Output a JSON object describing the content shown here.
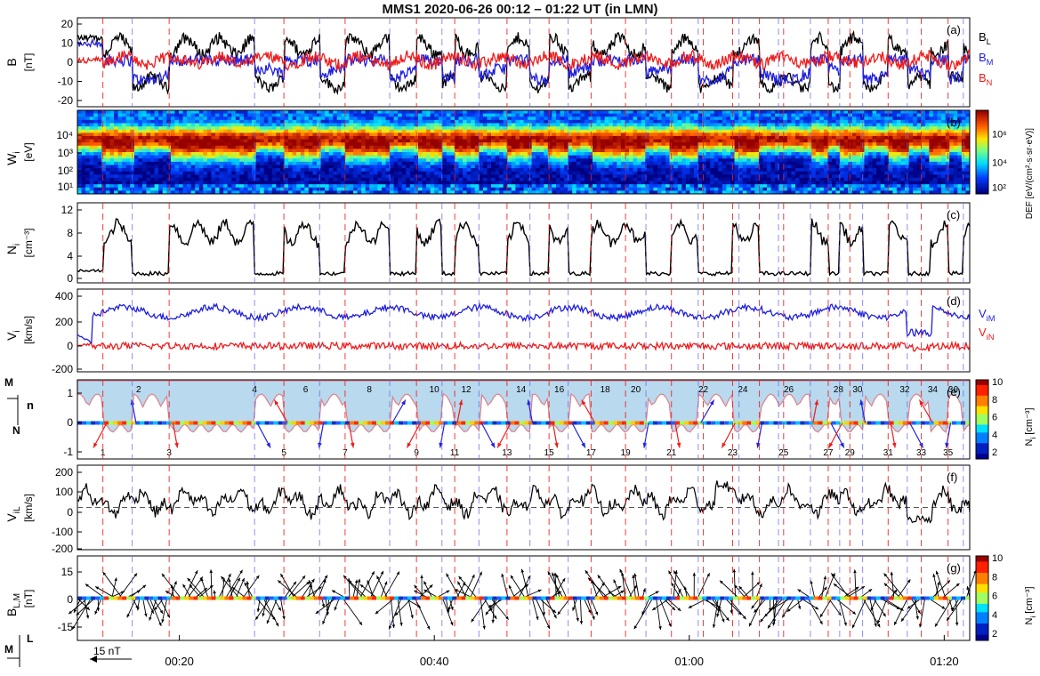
{
  "title": "MMS1 2020-06-26 00:12 – 01:22 UT (in LMN)",
  "time_ticks": [
    "00:20",
    "00:40",
    "01:00",
    "01:20"
  ],
  "scale_label": "15 nT",
  "axis_glyphs": {
    "M": "M",
    "N": "N",
    "L": "L",
    "n": "n"
  },
  "colorbar_label": "N",
  "colorbar_label_unit": " [cm",
  "colorbar_ticks": [
    "10",
    "8",
    "6",
    "4",
    "2"
  ],
  "spectrogram_colorbar_label": "DEF [eV/(cm²·s·sr·eV)]",
  "spectrogram_colorbar_ticks": [
    "10⁶",
    "10⁴",
    "10²"
  ],
  "colors": {
    "black": "#000000",
    "blue": "#1f1fdd",
    "red": "#ee1c1c",
    "flux_rope_fill": "#b8d9ee",
    "flux_rope_edge": "#e07f8a"
  },
  "event_numbers": [
    "1",
    "2",
    "3",
    "4",
    "5",
    "6",
    "7",
    "8",
    "9",
    "10",
    "11",
    "12",
    "13",
    "14",
    "15",
    "16",
    "17",
    "18",
    "19",
    "20",
    "21",
    "22",
    "23",
    "24",
    "25",
    "26",
    "27",
    "28",
    "29",
    "30",
    "31",
    "32",
    "33",
    "34",
    "35",
    "36"
  ],
  "chart_data": [
    {
      "panel": "(a)",
      "type": "line",
      "ylabel": "B",
      "yunit": "[nT]",
      "ylim": [
        -22,
        22
      ],
      "yticks": [
        "20",
        "10",
        "0",
        "-10",
        "-20"
      ],
      "series": [
        {
          "name": "B_L",
          "label_main": "B",
          "label_sub": "L",
          "color": "#000000"
        },
        {
          "name": "B_M",
          "label_main": "B",
          "label_sub": "M",
          "color": "#1f1fdd"
        },
        {
          "name": "B_N",
          "label_main": "B",
          "label_sub": "N",
          "color": "#ee1c1c"
        }
      ]
    },
    {
      "panel": "(b)",
      "type": "heatmap",
      "ylabel": "W",
      "ysub": "i",
      "yunit": "[eV]",
      "yticks": [
        "10⁴",
        "10³",
        "10²",
        "10¹"
      ]
    },
    {
      "panel": "(c)",
      "type": "line",
      "ylabel": "N",
      "ysub": "i",
      "yunit": "[cm⁻³]",
      "ylim": [
        0,
        12
      ],
      "yticks": [
        "12",
        "8",
        "4",
        "0"
      ]
    },
    {
      "panel": "(d)",
      "type": "line",
      "ylabel": "V",
      "ysub": "i",
      "yunit": "[km/s]",
      "ylim": [
        -220,
        420
      ],
      "yticks": [
        "400",
        "200",
        "0",
        "-200"
      ],
      "series": [
        {
          "name": "V_iM",
          "label_main": "V",
          "label_sub": "iM",
          "color": "#1f1fdd"
        },
        {
          "name": "V_iN",
          "label_main": "V",
          "label_sub": "iN",
          "color": "#ee1c1c"
        }
      ]
    },
    {
      "panel": "(e)",
      "type": "other",
      "yticks": [
        "1",
        "0",
        "-1"
      ]
    },
    {
      "panel": "(f)",
      "type": "line",
      "ylabel": "V",
      "ysub": "iL",
      "yunit": "[km/s]",
      "ylim": [
        -220,
        220
      ],
      "yticks": [
        "200",
        "100",
        "0",
        "-100",
        "-200"
      ]
    },
    {
      "panel": "(g)",
      "type": "other",
      "ylabel": "B",
      "ysub": "L,M",
      "yunit": "[nT]",
      "yticks": [
        "15",
        "0",
        "-15"
      ]
    }
  ]
}
